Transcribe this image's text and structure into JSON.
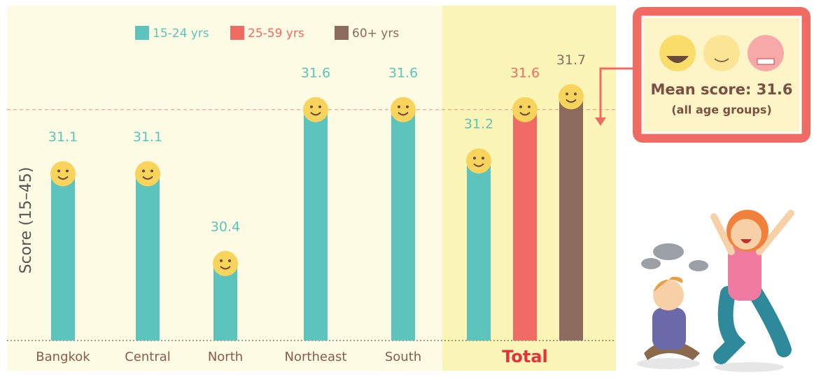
{
  "chart_data": {
    "type": "bar",
    "y_label": "Score (15–45)",
    "categories": [
      "Bangkok",
      "Central",
      "North",
      "Northeast",
      "South",
      "Total"
    ],
    "series": [
      {
        "name": "15-24 yrs",
        "color": "#5cc4bc",
        "values": [
          31.1,
          31.1,
          30.4,
          31.6,
          31.6,
          31.2
        ]
      },
      {
        "name": "25-59 yrs",
        "color": "#f06b63",
        "values": [
          null,
          null,
          null,
          null,
          null,
          31.6
        ]
      },
      {
        "name": "60+ yrs",
        "color": "#8c6a5e",
        "values": [
          null,
          null,
          null,
          null,
          null,
          31.7
        ]
      }
    ],
    "ylim": [
      29.8,
      32.4
    ],
    "reference_line": 31.6,
    "annotation": {
      "text": "Mean score: 31.6",
      "subtext": "(all age groups)"
    }
  }
}
